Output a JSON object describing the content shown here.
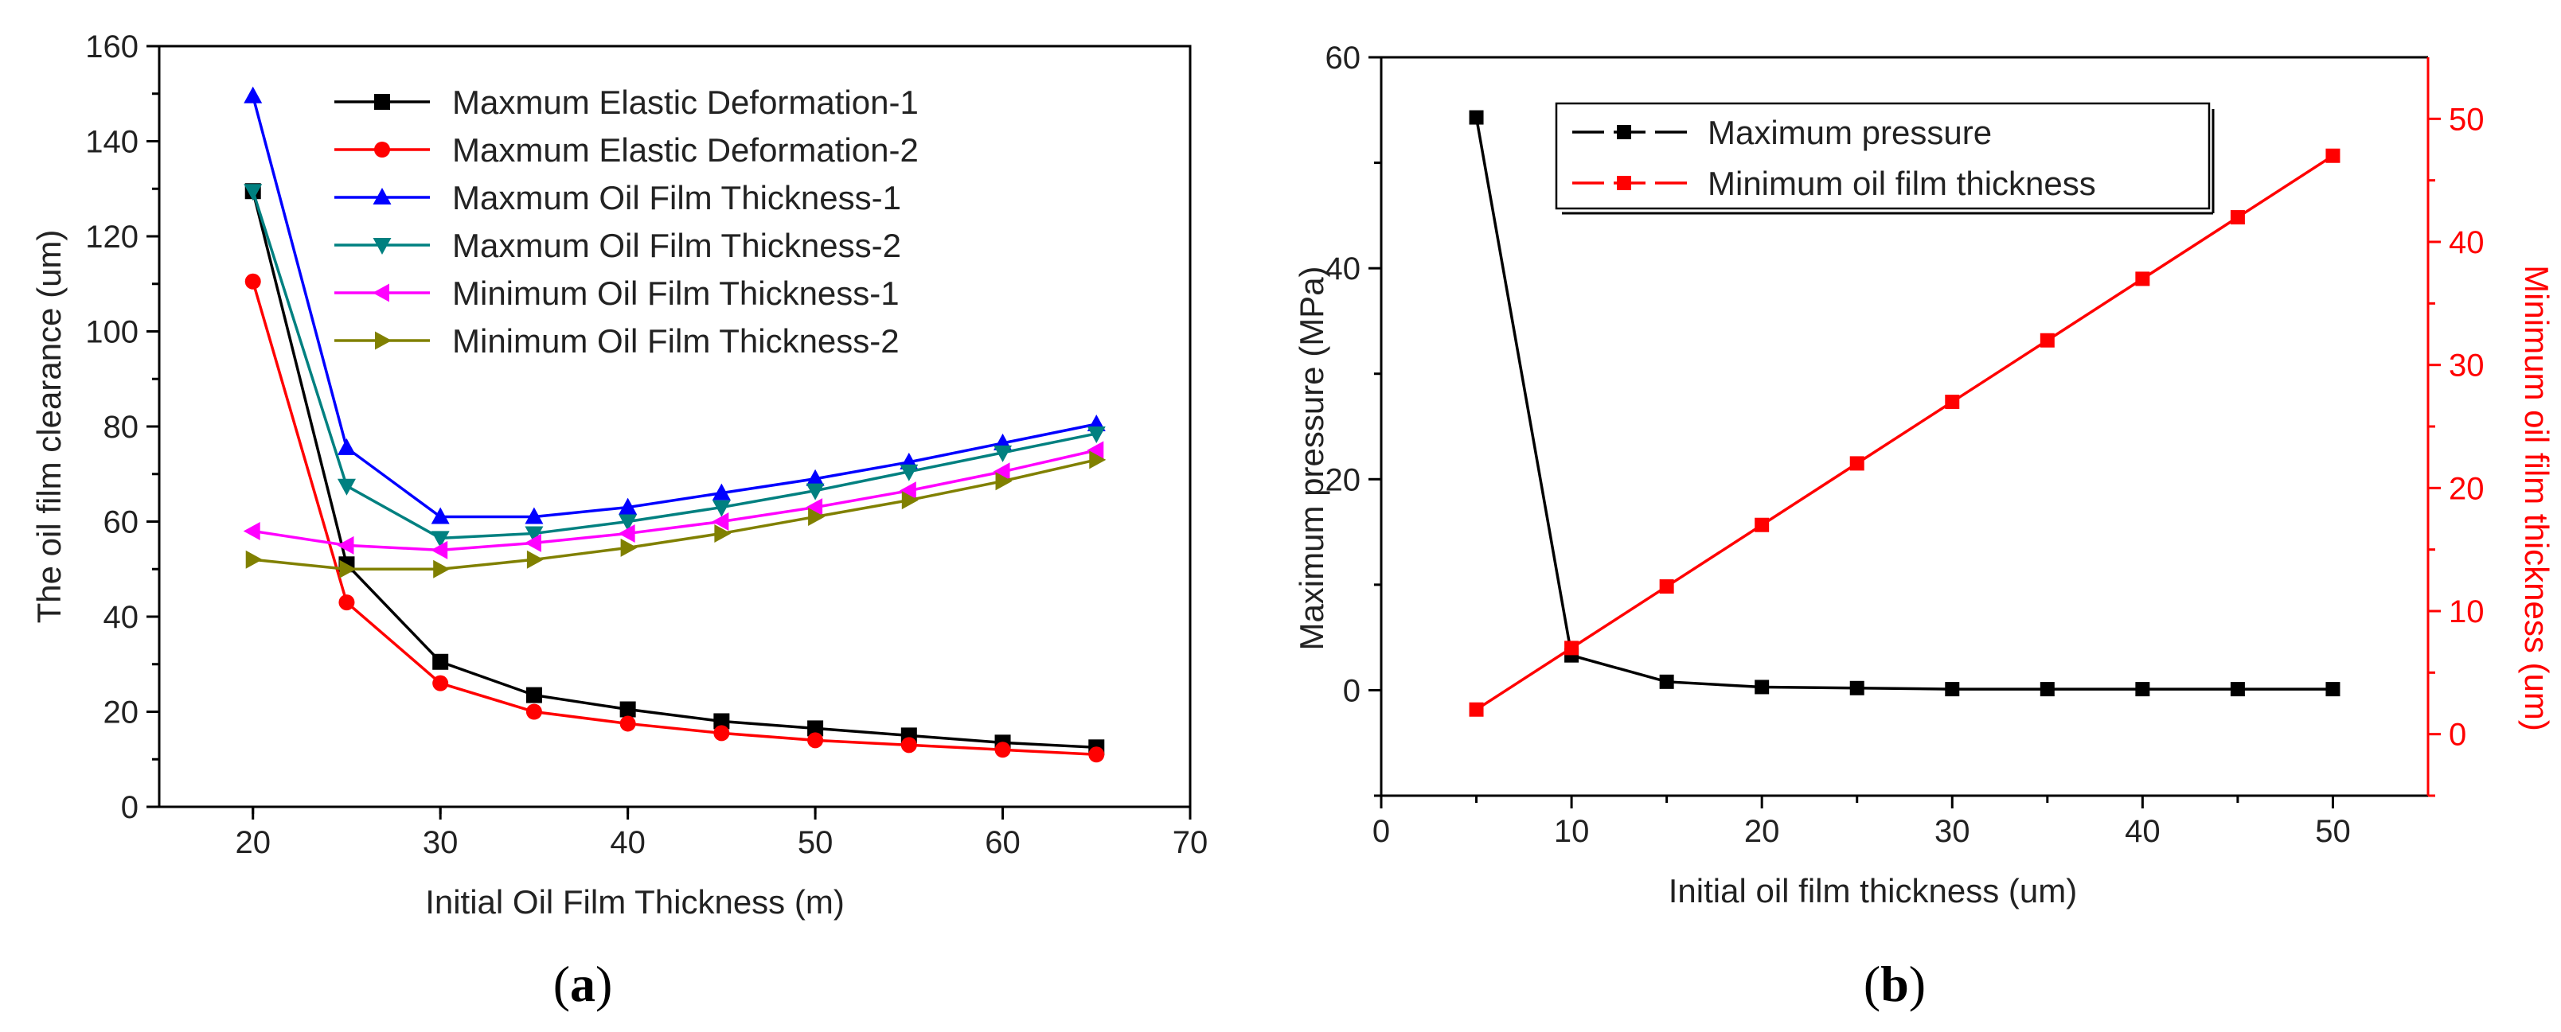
{
  "chart_data": [
    {
      "type": "line",
      "panel_label": "a",
      "xlabel": "Initial Oil Film Thickness (m)",
      "ylabel": "The oil film clearance (um)",
      "xlim": [
        15,
        70
      ],
      "ylim": [
        0,
        160
      ],
      "xticks": [
        20,
        30,
        40,
        50,
        60,
        70
      ],
      "yticks": [
        0,
        20,
        40,
        60,
        80,
        100,
        120,
        140,
        160
      ],
      "grid": false,
      "legend_position": "top-right",
      "x": [
        20,
        25,
        30,
        35,
        40,
        45,
        50,
        55,
        60,
        65
      ],
      "series": [
        {
          "name": "Maxmum Elastic Deformation-1",
          "color": "#000000",
          "marker": "square",
          "values": [
            129.5,
            51,
            30.5,
            23.5,
            20.5,
            18,
            16.5,
            15,
            13.5,
            12.5
          ]
        },
        {
          "name": "Maxmum Elastic Deformation-2",
          "color": "#ff0000",
          "marker": "circle",
          "values": [
            110.5,
            43,
            26,
            20,
            17.5,
            15.5,
            14,
            13,
            12,
            11
          ]
        },
        {
          "name": "Maxmum Oil Film Thickness-1",
          "color": "#0000ff",
          "marker": "triangle-up",
          "values": [
            149.5,
            75.5,
            61,
            61,
            63,
            66,
            69,
            72.5,
            76.5,
            80.5
          ]
        },
        {
          "name": "Maxmum Oil Film Thickness-2",
          "color": "#008080",
          "marker": "triangle-down",
          "values": [
            129.5,
            67.5,
            56.5,
            57.5,
            60,
            63,
            66.5,
            70.5,
            74.5,
            78.5
          ]
        },
        {
          "name": "Minimum Oil Film Thickness-1",
          "color": "#ff00ff",
          "marker": "triangle-left",
          "values": [
            58,
            55,
            54,
            55.5,
            57.5,
            60,
            63,
            66.5,
            70.5,
            75
          ]
        },
        {
          "name": "Minimum Oil Film Thickness-2",
          "color": "#808000",
          "marker": "triangle-right",
          "values": [
            52,
            50,
            50,
            52,
            54.5,
            57.5,
            61,
            64.5,
            68.5,
            73
          ]
        }
      ]
    },
    {
      "type": "line",
      "panel_label": "b",
      "xlabel": "Initial oil film thickness (um)",
      "ylabel": "Maximum pressure (MPa)",
      "ylabel_right": "Minimum oil film thickness (um)",
      "xlim": [
        0,
        55
      ],
      "ylim": [
        -10,
        60
      ],
      "ylim_right": [
        -5,
        55
      ],
      "xticks": [
        0,
        10,
        20,
        30,
        40,
        50
      ],
      "yticks": [
        0,
        20,
        40,
        60
      ],
      "yticks_right": [
        0,
        10,
        20,
        30,
        40,
        50
      ],
      "grid": false,
      "legend_position": "top-left",
      "x": [
        5,
        10,
        15,
        20,
        25,
        30,
        35,
        40,
        45,
        50
      ],
      "series": [
        {
          "name": "Maximum pressure",
          "color": "#000000",
          "marker": "square",
          "axis": "left",
          "values": [
            54.3,
            3.3,
            0.8,
            0.3,
            0.2,
            0.1,
            0.1,
            0.1,
            0.1,
            0.1
          ]
        },
        {
          "name": "Minimum oil film thickness",
          "color": "#ff0000",
          "marker": "square",
          "axis": "right",
          "values": [
            2,
            7,
            12,
            17,
            22,
            27,
            32,
            37,
            42,
            47
          ]
        }
      ]
    }
  ]
}
